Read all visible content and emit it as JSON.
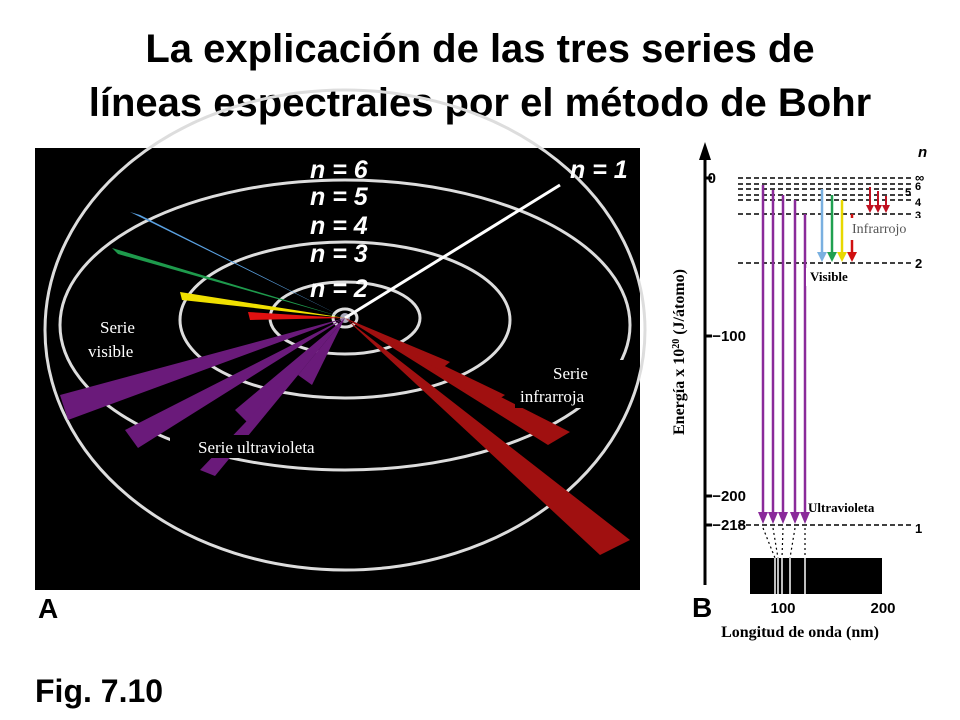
{
  "title": {
    "lines": [
      "La explicación de las tres series de",
      "líneas espectrales por el método de Bohr"
    ]
  },
  "panel_a": {
    "letter": "A",
    "orbit_labels": [
      "n = 6",
      "n = 5",
      "n = 4",
      "n = 3",
      "n = 2",
      "n = 1"
    ],
    "series_visible": [
      "Serie",
      "visible"
    ],
    "series_infrared": [
      "Serie",
      "infrarroja"
    ],
    "series_ultraviolet": "Serie ultravioleta"
  },
  "panel_b": {
    "letter": "B",
    "y_label": [
      "Energía x 10",
      "20",
      " (J/átomo)"
    ],
    "y_ticks": [
      "0",
      "−100",
      "−200",
      "−218"
    ],
    "n_header": "n",
    "levels": [
      "∞",
      "6",
      "5",
      "4",
      "3",
      "2",
      "1"
    ],
    "infrared": "Infrarrojo",
    "visible": "Visible",
    "ultraviolet": "Ultravioleta",
    "x_ticks": [
      "100",
      "200"
    ],
    "x_label": "Longitud de onda (nm)"
  },
  "figure_label": "Fig. 7.10"
}
